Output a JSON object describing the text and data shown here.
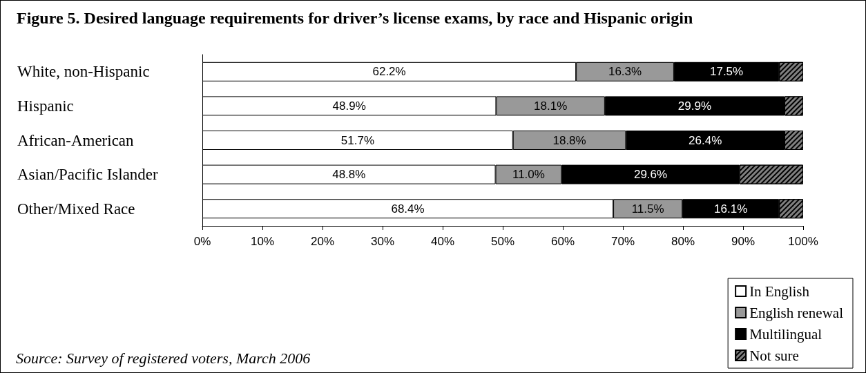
{
  "chart_data": {
    "type": "bar",
    "orientation": "horizontal",
    "stacked": true,
    "title": "Figure 5. Desired language requirements for driver’s license exams, by race and Hispanic origin",
    "categories": [
      "White, non-Hispanic",
      "Hispanic",
      "African-American",
      "Asian/Pacific Islander",
      "Other/Mixed Race"
    ],
    "series": [
      {
        "name": "In English",
        "color": "#ffffff",
        "values": [
          62.2,
          48.9,
          51.7,
          48.8,
          68.4
        ],
        "value_labels": [
          "62.2%",
          "48.9%",
          "51.7%",
          "48.8%",
          "68.4%"
        ]
      },
      {
        "name": "English renewal",
        "color": "#999999",
        "values": [
          16.3,
          18.1,
          18.8,
          11.0,
          11.5
        ],
        "value_labels": [
          "16.3%",
          "18.1%",
          "18.8%",
          "11.0%",
          "11.5%"
        ]
      },
      {
        "name": "Multilingual",
        "color": "#000000",
        "values": [
          17.5,
          29.9,
          26.4,
          29.6,
          16.1
        ],
        "value_labels": [
          "17.5%",
          "29.9%",
          "26.4%",
          "29.6%",
          "16.1%"
        ]
      },
      {
        "name": "Not sure",
        "color": "#808080",
        "values": [
          4.0,
          3.1,
          3.1,
          10.6,
          4.0
        ],
        "value_labels": [
          null,
          null,
          null,
          null,
          null
        ]
      }
    ],
    "xlim": [
      0,
      100
    ],
    "xticks": [
      {
        "value": 0,
        "label": "0%"
      },
      {
        "value": 10,
        "label": "10%"
      },
      {
        "value": 20,
        "label": "20%"
      },
      {
        "value": 30,
        "label": "30%"
      },
      {
        "value": 40,
        "label": "40%"
      },
      {
        "value": 50,
        "label": "50%"
      },
      {
        "value": 60,
        "label": "60%"
      },
      {
        "value": 70,
        "label": "70%"
      },
      {
        "value": 80,
        "label": "80%"
      },
      {
        "value": 90,
        "label": "90%"
      },
      {
        "value": 100,
        "label": "100%"
      }
    ],
    "grid": false,
    "legend": "bottom right",
    "annotations": [
      "Source: Survey of registered voters, March 2006"
    ]
  }
}
